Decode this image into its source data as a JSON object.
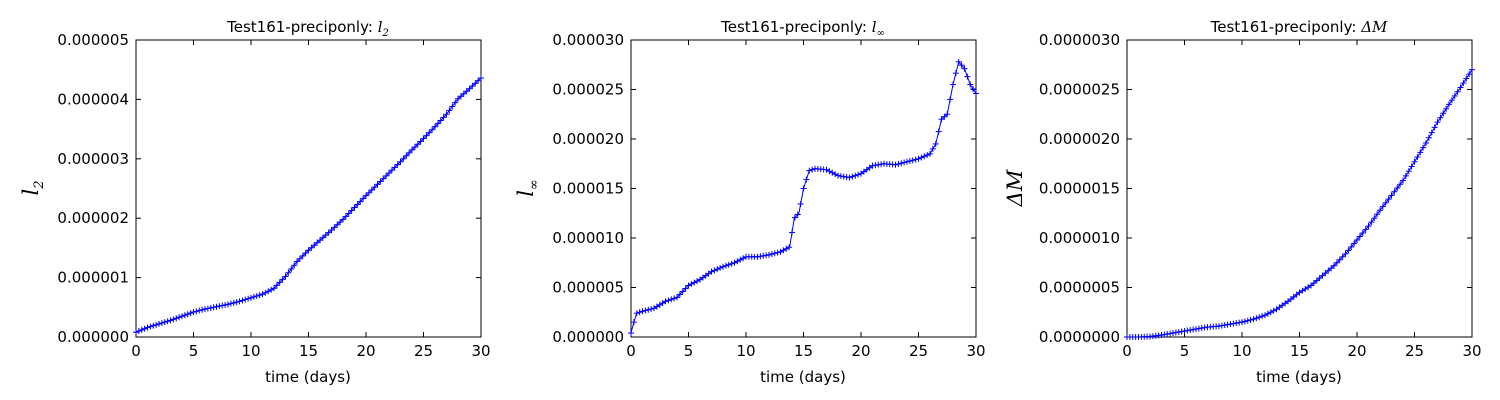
{
  "chart_data": [
    {
      "type": "line",
      "title_prefix": "Test161-preciponly: ",
      "title_math": "l",
      "title_math_sub": "2",
      "xlabel": "time (days)",
      "ylabel": "l",
      "ylabel_sub": "2",
      "xlim": [
        0,
        30
      ],
      "ylim": [
        0,
        5e-06
      ],
      "xticks": [
        0,
        5,
        10,
        15,
        20,
        25,
        30
      ],
      "xtick_labels": [
        "0",
        "5",
        "10",
        "15",
        "20",
        "25",
        "30"
      ],
      "yticks": [
        0,
        1e-06,
        2e-06,
        3e-06,
        4e-06,
        5e-06
      ],
      "ytick_labels": [
        "0.000000",
        "0.000001",
        "0.000002",
        "0.000003",
        "0.000004",
        "0.000005"
      ],
      "grid": false,
      "marker": "+",
      "color": "#0000ff",
      "series": [
        {
          "x": [
            0,
            1,
            2,
            3,
            4,
            5,
            6,
            7,
            8,
            9,
            10,
            11,
            12,
            13,
            14,
            15,
            16,
            17,
            18,
            19,
            20,
            21,
            22,
            23,
            24,
            25,
            26,
            27,
            28,
            29,
            30
          ],
          "y": [
            8e-08,
            1.6e-07,
            2.2e-07,
            2.8e-07,
            3.5e-07,
            4.2e-07,
            4.7e-07,
            5.1e-07,
            5.5e-07,
            6e-07,
            6.6e-07,
            7.2e-07,
            8.2e-07,
            1.02e-06,
            1.27e-06,
            1.46e-06,
            1.63e-06,
            1.8e-06,
            1.98e-06,
            2.18e-06,
            2.38e-06,
            2.57e-06,
            2.76e-06,
            2.95e-06,
            3.15e-06,
            3.34e-06,
            3.54e-06,
            3.75e-06,
            4.01e-06,
            4.18e-06,
            4.36e-06
          ]
        }
      ]
    },
    {
      "type": "line",
      "title_prefix": "Test161-preciponly: ",
      "title_math": "l",
      "title_math_sub": "∞",
      "xlabel": "time (days)",
      "ylabel": "l",
      "ylabel_sub": "∞",
      "xlim": [
        0,
        30
      ],
      "ylim": [
        0,
        3e-05
      ],
      "xticks": [
        0,
        5,
        10,
        15,
        20,
        25,
        30
      ],
      "xtick_labels": [
        "0",
        "5",
        "10",
        "15",
        "20",
        "25",
        "30"
      ],
      "yticks": [
        0,
        5e-06,
        1e-05,
        1.5e-05,
        2e-05,
        2.5e-05,
        3e-05
      ],
      "ytick_labels": [
        "0.000000",
        "0.000005",
        "0.000010",
        "0.000015",
        "0.000020",
        "0.000025",
        "0.000030"
      ],
      "grid": false,
      "marker": "+",
      "color": "#0000ff",
      "series": [
        {
          "x": [
            0,
            0.25,
            0.5,
            1,
            2,
            3,
            4,
            5,
            6,
            7,
            8,
            9,
            10,
            11,
            12,
            13,
            13.8,
            14.2,
            14.6,
            15,
            15.5,
            16,
            17,
            18,
            19,
            20,
            21,
            22,
            23,
            24,
            25,
            26,
            26.5,
            27,
            27.5,
            28,
            28.5,
            29,
            29.5,
            30
          ],
          "y": [
            4e-07,
            1.5e-06,
            2.4e-06,
            2.6e-06,
            2.9e-06,
            3.6e-06,
            4e-06,
            5.2e-06,
            5.8e-06,
            6.6e-06,
            7.1e-06,
            7.5e-06,
            8.1e-06,
            8.1e-06,
            8.3e-06,
            8.6e-06,
            9.1e-06,
            1.2e-05,
            1.25e-05,
            1.5e-05,
            1.68e-05,
            1.7e-05,
            1.69e-05,
            1.63e-05,
            1.61e-05,
            1.65e-05,
            1.73e-05,
            1.75e-05,
            1.74e-05,
            1.77e-05,
            1.8e-05,
            1.85e-05,
            1.95e-05,
            2.2e-05,
            2.25e-05,
            2.55e-05,
            2.78e-05,
            2.71e-05,
            2.55e-05,
            2.46e-05
          ]
        }
      ]
    },
    {
      "type": "line",
      "title_prefix": "Test161-preciponly: ",
      "title_math": "ΔM",
      "title_math_sub": "",
      "xlabel": "time (days)",
      "ylabel": "ΔM",
      "ylabel_sub": "",
      "xlim": [
        0,
        30
      ],
      "ylim": [
        0,
        3e-06
      ],
      "xticks": [
        0,
        5,
        10,
        15,
        20,
        25,
        30
      ],
      "xtick_labels": [
        "0",
        "5",
        "10",
        "15",
        "20",
        "25",
        "30"
      ],
      "yticks": [
        0,
        5e-07,
        1e-06,
        1.5e-06,
        2e-06,
        2.5e-06,
        3e-06
      ],
      "ytick_labels": [
        "0.0000000",
        "0.0000005",
        "0.0000010",
        "0.0000015",
        "0.0000020",
        "0.0000025",
        "0.0000030"
      ],
      "grid": false,
      "marker": "+",
      "color": "#0000ff",
      "series": [
        {
          "x": [
            0,
            1,
            2,
            3,
            4,
            5,
            6,
            7,
            8,
            9,
            10,
            11,
            12,
            13,
            14,
            15,
            16,
            17,
            18,
            19,
            20,
            21,
            22,
            23,
            24,
            25,
            26,
            27,
            28,
            29,
            30
          ],
          "y": [
            0,
            0,
            5e-09,
            2e-08,
            4e-08,
            6e-08,
            8e-08,
            1e-07,
            1.1e-07,
            1.3e-07,
            1.5e-07,
            1.8e-07,
            2.2e-07,
            2.8e-07,
            3.6e-07,
            4.5e-07,
            5.2e-07,
            6.2e-07,
            7.2e-07,
            8.4e-07,
            9.8e-07,
            1.12e-06,
            1.28e-06,
            1.43e-06,
            1.58e-06,
            1.77e-06,
            1.96e-06,
            2.17e-06,
            2.35e-06,
            2.52e-06,
            2.7e-06
          ]
        }
      ]
    }
  ]
}
